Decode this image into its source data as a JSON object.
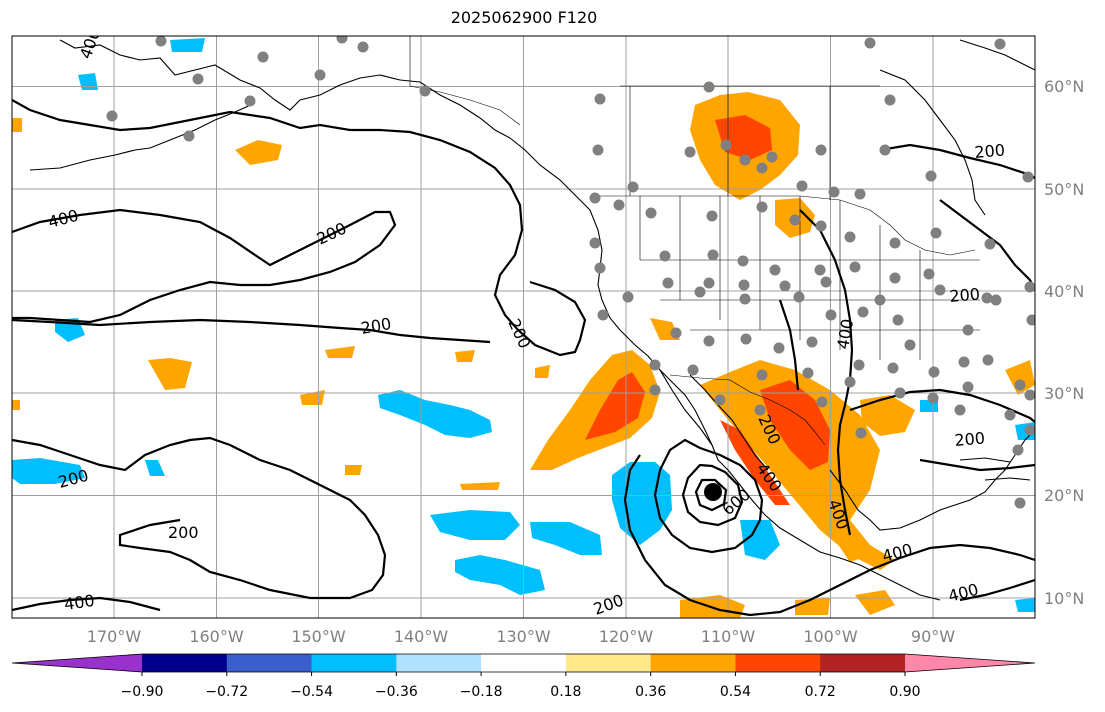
{
  "title": "2025062900 F120",
  "map": {
    "lon_labels": [
      "170°W",
      "160°W",
      "150°W",
      "140°W",
      "130°W",
      "120°W",
      "110°W",
      "100°W",
      "90°W"
    ],
    "lat_labels": [
      "60°N",
      "50°N",
      "40°N",
      "30°N",
      "20°N",
      "10°N"
    ],
    "contour_labels": [
      "400",
      "400",
      "200",
      "200",
      "200",
      "200",
      "400",
      "600",
      "400",
      "200",
      "200",
      "200",
      "400",
      "400",
      "200",
      "200",
      "200",
      "400",
      "400"
    ],
    "colors": {
      "coast": "#000000",
      "grid": "#a0a0a0",
      "station": "#808080",
      "pos_light": "#ffe98a",
      "pos_orange": "#ffa500",
      "pos_red": "#ff4500",
      "neg_blue": "#00bfff",
      "neg_light": "#b0e2ff"
    }
  },
  "colorbar": {
    "ticks": [
      "−0.90",
      "−0.72",
      "−0.54",
      "−0.36",
      "−0.18",
      "0.18",
      "0.36",
      "0.54",
      "0.72",
      "0.90"
    ],
    "colors": [
      "#9932cc",
      "#00008b",
      "#3a5fcd",
      "#00bfff",
      "#b0e2ff",
      "#ffffff",
      "#ffe98a",
      "#ffa500",
      "#ff4500",
      "#b22222",
      "#ff88aa"
    ]
  }
}
